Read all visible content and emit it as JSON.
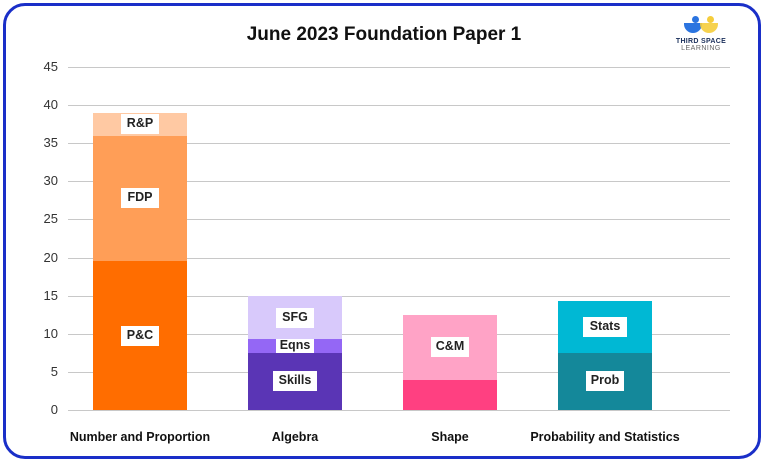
{
  "chart_data": {
    "type": "bar",
    "stacked": true,
    "title": "June 2023 Foundation Paper 1",
    "xlabel": "",
    "ylabel": "",
    "ylim": [
      0,
      45
    ],
    "yticks": [
      "0",
      "5",
      "10",
      "15",
      "20",
      "25",
      "30",
      "35",
      "40",
      "45"
    ],
    "grid": true,
    "legend": "none (segment labels inside bars)",
    "categories": [
      "Number and Proportion",
      "Algebra",
      "Shape",
      "Probability and Statistics"
    ],
    "series_by_category": [
      {
        "category": "Number and Proportion",
        "segments": [
          {
            "name": "P&C",
            "value": 19.5,
            "color": "#ff6d00"
          },
          {
            "name": "FDP",
            "value": 16.5,
            "color": "#ff9e57"
          },
          {
            "name": "R&P",
            "value": 3,
            "color": "#ffc9a3"
          }
        ]
      },
      {
        "category": "Algebra",
        "segments": [
          {
            "name": "Skills",
            "value": 7.5,
            "color": "#5a35b5"
          },
          {
            "name": "Eqns",
            "value": 1.75,
            "color": "#9467f5"
          },
          {
            "name": "SFG",
            "value": 5.75,
            "color": "#d8c9fb"
          }
        ]
      },
      {
        "category": "Shape",
        "segments": [
          {
            "name": "",
            "value": 4,
            "color": "#ff4081"
          },
          {
            "name": "C&M",
            "value": 8.5,
            "color": "#ffa3c6"
          }
        ]
      },
      {
        "category": "Probability and Statistics",
        "segments": [
          {
            "name": "Prob",
            "value": 7.5,
            "color": "#14889a"
          },
          {
            "name": "Stats",
            "value": 6.75,
            "color": "#00b8d4"
          }
        ]
      }
    ],
    "totals": [
      39,
      15,
      12.5,
      14.25
    ]
  },
  "logo": {
    "line1": "THIRD SPACE",
    "line2": "LEARNING"
  },
  "colors": {
    "frame_border": "#1a2fc8"
  }
}
